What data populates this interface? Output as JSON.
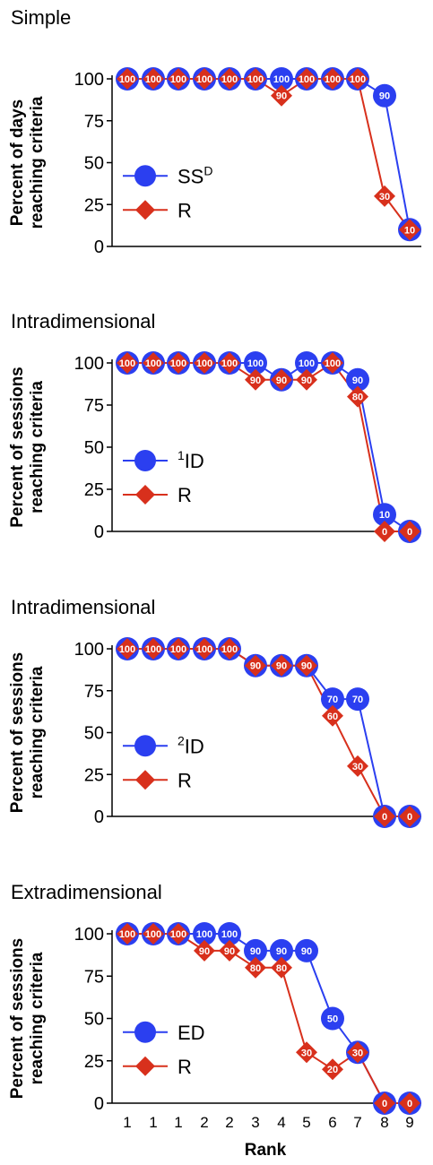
{
  "colors": {
    "blue": "#2b3ff0",
    "red": "#d8301c",
    "axis": "#000000"
  },
  "xlabel": "Rank",
  "x_ticks": [
    "1",
    "1",
    "1",
    "2",
    "2",
    "3",
    "4",
    "5",
    "6",
    "7",
    "8",
    "9"
  ],
  "chart_data": [
    {
      "type": "line",
      "title": "Simple",
      "ylabel_lines": [
        "Percent of days",
        "reaching criteria"
      ],
      "ylim": [
        0,
        100
      ],
      "yticks": [
        0,
        25,
        50,
        75,
        100
      ],
      "legend": [
        {
          "base": "SS",
          "sup": "D",
          "prefix": "",
          "marker": "circle"
        },
        {
          "base": "R",
          "sup": "",
          "prefix": "",
          "marker": "diamond"
        }
      ],
      "series": [
        {
          "name": "SSD",
          "values": [
            100,
            100,
            100,
            100,
            100,
            100,
            100,
            100,
            100,
            100,
            90,
            10
          ]
        },
        {
          "name": "R",
          "values": [
            100,
            100,
            100,
            100,
            100,
            100,
            90,
            100,
            100,
            100,
            30,
            10
          ]
        }
      ]
    },
    {
      "type": "line",
      "title": "Intradimensional",
      "ylabel_lines": [
        "Percent of sessions",
        "reaching criteria"
      ],
      "ylim": [
        0,
        100
      ],
      "yticks": [
        0,
        25,
        50,
        75,
        100
      ],
      "legend": [
        {
          "base": "ID",
          "sup": "",
          "prefix": "1",
          "marker": "circle"
        },
        {
          "base": "R",
          "sup": "",
          "prefix": "",
          "marker": "diamond"
        }
      ],
      "series": [
        {
          "name": "1ID",
          "values": [
            100,
            100,
            100,
            100,
            100,
            100,
            90,
            100,
            100,
            90,
            10,
            0
          ]
        },
        {
          "name": "R",
          "values": [
            100,
            100,
            100,
            100,
            100,
            90,
            90,
            90,
            100,
            80,
            0,
            0
          ]
        }
      ]
    },
    {
      "type": "line",
      "title": "Intradimensional",
      "ylabel_lines": [
        "Percent of sessions",
        "reaching criteria"
      ],
      "ylim": [
        0,
        100
      ],
      "yticks": [
        0,
        25,
        50,
        75,
        100
      ],
      "legend": [
        {
          "base": "ID",
          "sup": "",
          "prefix": "2",
          "marker": "circle"
        },
        {
          "base": "R",
          "sup": "",
          "prefix": "",
          "marker": "diamond"
        }
      ],
      "series": [
        {
          "name": "2ID",
          "values": [
            100,
            100,
            100,
            100,
            100,
            90,
            90,
            90,
            70,
            70,
            0,
            0
          ]
        },
        {
          "name": "R",
          "values": [
            100,
            100,
            100,
            100,
            100,
            90,
            90,
            90,
            60,
            30,
            0,
            0
          ]
        }
      ]
    },
    {
      "type": "line",
      "title": "Extradimensional",
      "ylabel_lines": [
        "Percent of sessions",
        "reaching criteria"
      ],
      "ylim": [
        0,
        100
      ],
      "yticks": [
        0,
        25,
        50,
        75,
        100
      ],
      "legend": [
        {
          "base": "ED",
          "sup": "",
          "prefix": "",
          "marker": "circle"
        },
        {
          "base": "R",
          "sup": "",
          "prefix": "",
          "marker": "diamond"
        }
      ],
      "series": [
        {
          "name": "ED",
          "values": [
            100,
            100,
            100,
            100,
            100,
            90,
            90,
            90,
            50,
            30,
            0,
            0
          ]
        },
        {
          "name": "R",
          "values": [
            100,
            100,
            100,
            90,
            90,
            80,
            80,
            30,
            20,
            30,
            0,
            0
          ]
        }
      ]
    }
  ]
}
